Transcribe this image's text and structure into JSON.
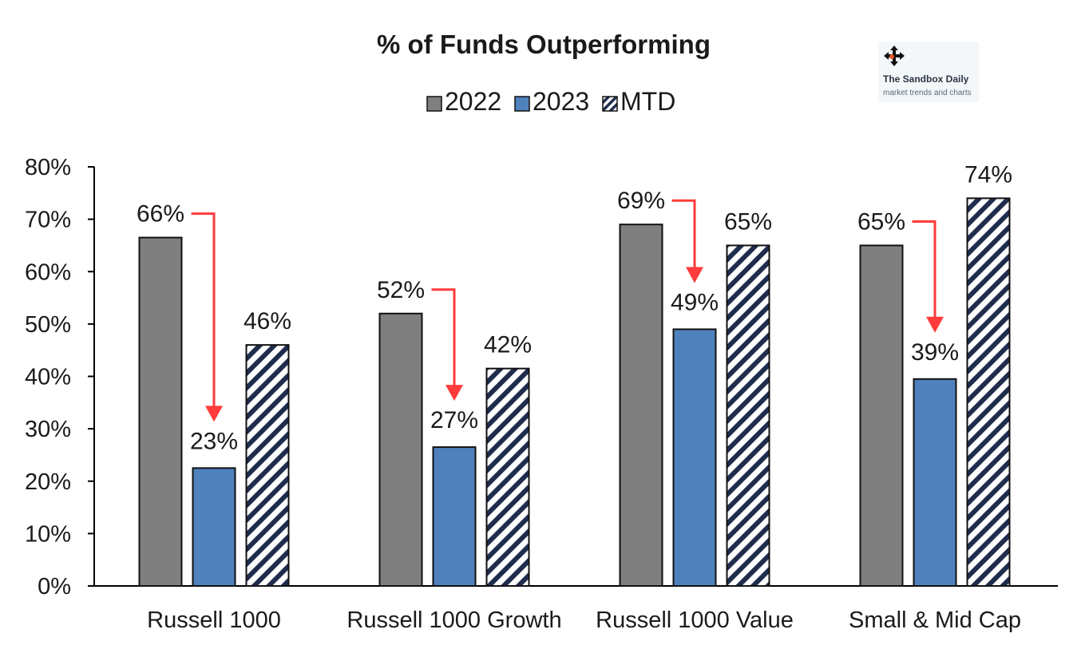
{
  "chart_data": {
    "type": "bar",
    "title": "% of Funds Outperforming",
    "categories": [
      "Russell 1000",
      "Russell 1000 Growth",
      "Russell 1000 Value",
      "Small & Mid Cap"
    ],
    "series": [
      {
        "name": "2022",
        "values": [
          66.5,
          52,
          69,
          65
        ],
        "labels": [
          "66%",
          "52%",
          "69%",
          "65%"
        ],
        "color": "#7f7f7f"
      },
      {
        "name": "2023",
        "values": [
          22.5,
          26.5,
          49,
          39.5
        ],
        "labels": [
          "23%",
          "27%",
          "49%",
          "39%"
        ],
        "color": "#4f81bd"
      },
      {
        "name": "MTD",
        "values": [
          46,
          41.5,
          65,
          74
        ],
        "labels": [
          "46%",
          "42%",
          "65%",
          "74%"
        ],
        "pattern": "diagonal-stripes",
        "color": "#1f2d4d"
      }
    ],
    "ylim": [
      0,
      80
    ],
    "yticks": [
      0,
      10,
      20,
      30,
      40,
      50,
      60,
      70,
      80
    ],
    "ytick_labels": [
      "0%",
      "10%",
      "20%",
      "30%",
      "40%",
      "50%",
      "60%",
      "70%",
      "80%"
    ],
    "xlabel": "",
    "ylabel": "",
    "grid": false,
    "legend_position": "top-center",
    "annotations": "red arrows from each 2022 label down to the 2023 bar",
    "arrow_color": "#ff3b3b"
  },
  "watermark": {
    "title": "The Sandbox Daily",
    "subtitle": "market trends and charts",
    "icon": "move-icon"
  }
}
